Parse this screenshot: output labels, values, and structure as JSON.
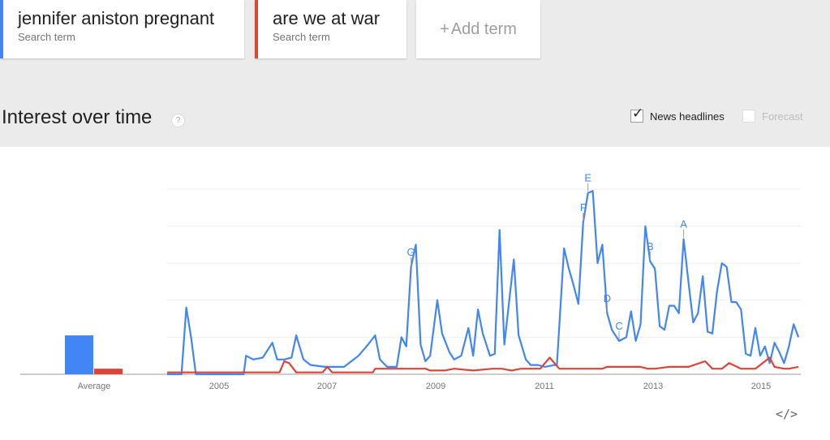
{
  "terms": [
    {
      "name": "jennifer aniston pregnant",
      "sub": "Search term",
      "color": "#4285f4"
    },
    {
      "name": "are we at war",
      "sub": "Search term",
      "color": "#db4437"
    }
  ],
  "add_term": {
    "plus": "+",
    "label": "Add term"
  },
  "section": {
    "title": "Interest over time",
    "help_icon": "?"
  },
  "options": {
    "news": {
      "label": "News headlines",
      "checked": true,
      "check_glyph": "✓"
    },
    "forecast": {
      "label": "Forecast",
      "checked": false
    }
  },
  "embed_icon": "</>",
  "chart_data": {
    "type": "line",
    "ylim": [
      0,
      100
    ],
    "grid": true,
    "x_tick_labels": [
      "2005",
      "2007",
      "2009",
      "2011",
      "2013",
      "2015"
    ],
    "x_tick_years": [
      2005,
      2007,
      2009,
      2011,
      2013,
      2015
    ],
    "x_start": 2004.0,
    "x_end": 2015.7,
    "average": {
      "label": "Average",
      "values": [
        {
          "series": "jennifer aniston pregnant",
          "value": 21
        },
        {
          "series": "are we at war",
          "value": 3
        }
      ]
    },
    "series": [
      {
        "name": "jennifer aniston pregnant",
        "color": "#4285f4",
        "points": [
          [
            2004.0,
            0
          ],
          [
            2004.3,
            0
          ],
          [
            2004.4,
            36
          ],
          [
            2004.5,
            20
          ],
          [
            2004.6,
            0
          ],
          [
            2005.0,
            0
          ],
          [
            2005.5,
            0
          ],
          [
            2005.6,
            0
          ],
          [
            2005.65,
            10
          ],
          [
            2005.8,
            8
          ],
          [
            2006.0,
            9
          ],
          [
            2006.2,
            17
          ],
          [
            2006.3,
            8
          ],
          [
            2006.45,
            8
          ],
          [
            2006.6,
            9
          ],
          [
            2006.7,
            21
          ],
          [
            2006.85,
            8
          ],
          [
            2007.0,
            5
          ],
          [
            2007.3,
            4
          ],
          [
            2007.5,
            4
          ],
          [
            2007.7,
            4
          ],
          [
            2008.0,
            10
          ],
          [
            2008.2,
            16
          ],
          [
            2008.35,
            21
          ],
          [
            2008.45,
            8
          ],
          [
            2008.6,
            4
          ],
          [
            2008.8,
            4
          ],
          [
            2008.9,
            20
          ],
          [
            2009.0,
            15
          ],
          [
            2009.1,
            58
          ],
          [
            2009.2,
            70
          ],
          [
            2009.3,
            16
          ],
          [
            2009.4,
            7
          ],
          [
            2009.5,
            10
          ],
          [
            2009.65,
            40
          ],
          [
            2009.75,
            22
          ],
          [
            2009.9,
            12
          ],
          [
            2010.0,
            8
          ],
          [
            2010.15,
            10
          ],
          [
            2010.3,
            25
          ],
          [
            2010.4,
            10
          ],
          [
            2010.5,
            35
          ],
          [
            2010.6,
            22
          ],
          [
            2010.75,
            10
          ],
          [
            2010.85,
            11
          ],
          [
            2010.95,
            78
          ],
          [
            2011.05,
            16
          ],
          [
            2011.25,
            62
          ],
          [
            2011.35,
            21
          ],
          [
            2011.5,
            8
          ],
          [
            2011.6,
            5
          ],
          [
            2011.75,
            5
          ],
          [
            2011.9,
            4
          ],
          [
            2012.1,
            5
          ],
          [
            2012.15,
            5
          ],
          [
            2012.3,
            68
          ],
          [
            2012.4,
            57
          ],
          [
            2012.5,
            48
          ],
          [
            2012.6,
            38
          ],
          [
            2012.7,
            82
          ],
          [
            2012.8,
            98
          ],
          [
            2012.9,
            99
          ],
          [
            2013.0,
            60
          ],
          [
            2013.1,
            70
          ],
          [
            2013.2,
            33
          ],
          [
            2013.3,
            24
          ],
          [
            2013.45,
            18
          ],
          [
            2013.6,
            20
          ],
          [
            2013.7,
            34
          ],
          [
            2013.8,
            18
          ],
          [
            2013.9,
            27
          ],
          [
            2014.0,
            80
          ],
          [
            2014.1,
            61
          ],
          [
            2014.2,
            57
          ],
          [
            2014.3,
            26
          ],
          [
            2014.4,
            24
          ],
          [
            2014.5,
            37
          ],
          [
            2014.6,
            37
          ],
          [
            2014.7,
            33
          ],
          [
            2014.8,
            73
          ],
          [
            2014.9,
            50
          ],
          [
            2015.0,
            28
          ],
          [
            2015.1,
            33
          ],
          [
            2015.2,
            53
          ],
          [
            2015.3,
            23
          ],
          [
            2015.4,
            22
          ],
          [
            2015.5,
            45
          ],
          [
            2015.6,
            60
          ],
          [
            2015.7,
            58
          ],
          [
            2015.8,
            39
          ],
          [
            2015.9,
            39
          ],
          [
            2016.0,
            35
          ],
          [
            2016.1,
            11
          ],
          [
            2016.2,
            10
          ],
          [
            2016.3,
            25
          ],
          [
            2016.4,
            10
          ],
          [
            2016.5,
            15
          ],
          [
            2016.6,
            6
          ],
          [
            2016.7,
            17
          ],
          [
            2016.8,
            12
          ],
          [
            2016.9,
            6
          ],
          [
            2017.0,
            15
          ],
          [
            2017.1,
            27
          ],
          [
            2017.2,
            20
          ]
        ]
      },
      {
        "name": "are we at war",
        "color": "#db4437",
        "points": [
          [
            2004.0,
            1
          ],
          [
            2005.5,
            1
          ],
          [
            2005.8,
            1
          ],
          [
            2006.0,
            1
          ],
          [
            2006.35,
            1
          ],
          [
            2006.45,
            7
          ],
          [
            2006.55,
            6
          ],
          [
            2006.7,
            1
          ],
          [
            2007.0,
            1
          ],
          [
            2007.25,
            1
          ],
          [
            2007.35,
            4
          ],
          [
            2007.45,
            1
          ],
          [
            2007.8,
            1
          ],
          [
            2008.0,
            1
          ],
          [
            2008.3,
            1
          ],
          [
            2008.35,
            3
          ],
          [
            2008.9,
            3
          ],
          [
            2009.0,
            3
          ],
          [
            2009.4,
            3
          ],
          [
            2009.5,
            2
          ],
          [
            2009.8,
            2
          ],
          [
            2010.0,
            3
          ],
          [
            2010.4,
            2
          ],
          [
            2010.8,
            3
          ],
          [
            2011.0,
            3
          ],
          [
            2011.2,
            2
          ],
          [
            2011.4,
            3
          ],
          [
            2011.8,
            3
          ],
          [
            2012.0,
            9
          ],
          [
            2012.2,
            3
          ],
          [
            2012.4,
            3
          ],
          [
            2013.1,
            3
          ],
          [
            2013.2,
            4
          ],
          [
            2013.9,
            4
          ],
          [
            2014.05,
            3
          ],
          [
            2014.2,
            3
          ],
          [
            2014.5,
            4
          ],
          [
            2014.9,
            4
          ],
          [
            2015.25,
            7
          ],
          [
            2015.4,
            3
          ],
          [
            2015.6,
            3
          ],
          [
            2015.75,
            6
          ],
          [
            2016.0,
            3
          ],
          [
            2016.3,
            3
          ],
          [
            2016.6,
            9
          ],
          [
            2016.7,
            4
          ],
          [
            2016.9,
            3
          ],
          [
            2017.0,
            3
          ],
          [
            2017.2,
            4
          ]
        ]
      }
    ],
    "annotations": [
      {
        "letter": "A",
        "x": 2014.8,
        "y": 73
      },
      {
        "letter": "B",
        "x": 2014.1,
        "y": 61
      },
      {
        "letter": "C",
        "x": 2013.45,
        "y": 18
      },
      {
        "letter": "D",
        "x": 2013.2,
        "y": 33
      },
      {
        "letter": "E",
        "x": 2012.8,
        "y": 98
      },
      {
        "letter": "F",
        "x": 2012.7,
        "y": 82
      },
      {
        "letter": "G",
        "x": 2009.1,
        "y": 58
      }
    ]
  }
}
